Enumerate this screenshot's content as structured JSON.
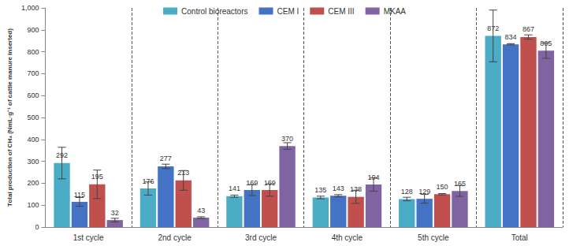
{
  "chart_data": {
    "type": "bar",
    "y_label": "Total production of CH₄ (NmL·g⁻¹ of cattle manure inserted)",
    "categories": [
      "1st cycle",
      "2nd cycle",
      "3rd cycle",
      "4th cycle",
      "5th cycle",
      "Total"
    ],
    "series": [
      {
        "name": "Control bioreactors",
        "color": "#4BACC6",
        "values": [
          292,
          176,
          141,
          135,
          128,
          872
        ],
        "errors": [
          72,
          30,
          5,
          6,
          8,
          118
        ]
      },
      {
        "name": "CEM I",
        "color": "#4472C4",
        "values": [
          115,
          277,
          169,
          143,
          129,
          834
        ],
        "errors": [
          20,
          10,
          25,
          5,
          20,
          3
        ]
      },
      {
        "name": "CEM III",
        "color": "#C0504D",
        "values": [
          195,
          213,
          169,
          138,
          150,
          867
        ],
        "errors": [
          65,
          45,
          28,
          30,
          3,
          10
        ]
      },
      {
        "name": "MKAA",
        "color": "#8064A2",
        "values": [
          32,
          43,
          370,
          194,
          165,
          805
        ],
        "errors": [
          8,
          4,
          15,
          30,
          25,
          35
        ]
      }
    ],
    "ylim": [
      0,
      1000
    ],
    "yticks": [
      0,
      100,
      200,
      300,
      400,
      500,
      600,
      700,
      800,
      900,
      1000
    ],
    "grid": false,
    "legend": "top",
    "data_labels": true
  }
}
